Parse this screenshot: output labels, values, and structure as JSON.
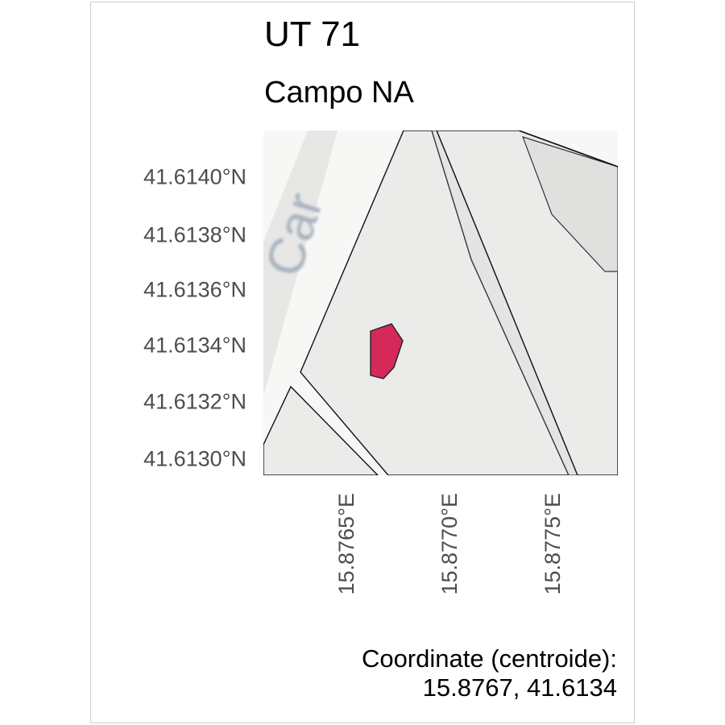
{
  "header": {
    "title": "UT 71",
    "subtitle": "Campo NA"
  },
  "map": {
    "basemap_label": "Car",
    "colors": {
      "field": "#d5295a",
      "parcel": "#ebebea",
      "parcel_dark": "#e0e0df",
      "background": "#f7f7f5",
      "road_text": "#a9b4bf"
    }
  },
  "axes": {
    "lat_labels": [
      "41.6140°N",
      "41.6138°N",
      "41.6136°N",
      "41.6134°N",
      "41.6132°N",
      "41.6130°N"
    ],
    "lon_labels": [
      "15.8765°E",
      "15.8770°E",
      "15.8775°E"
    ]
  },
  "footer": {
    "caption_line1": "Coordinate (centroide):",
    "caption_line2": "15.8767, 41.6134"
  }
}
